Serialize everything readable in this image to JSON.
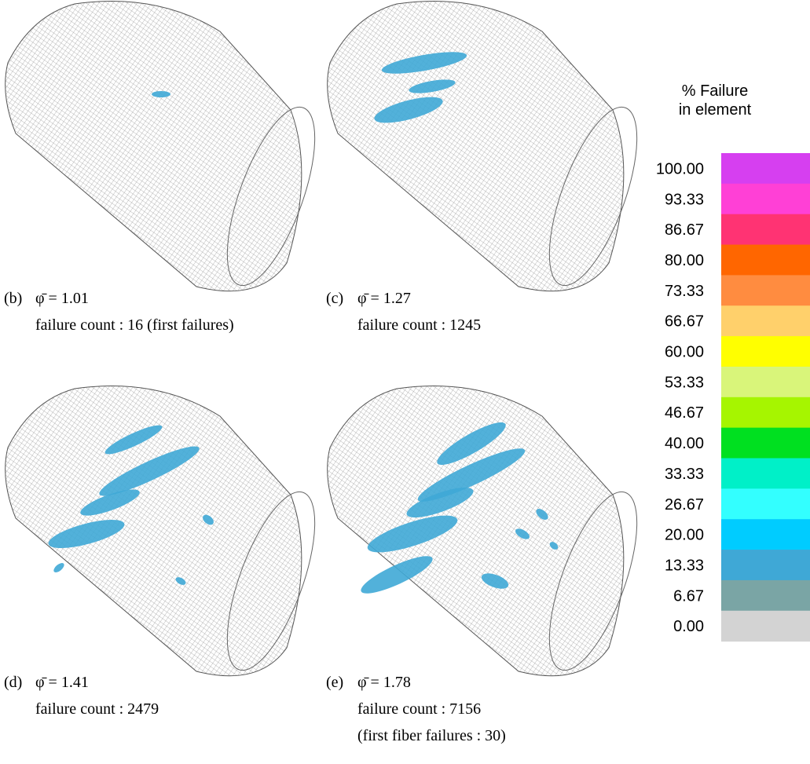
{
  "legend": {
    "title": [
      "% Failure",
      "in element"
    ],
    "entries": [
      {
        "label": "100.00",
        "color": "#d63ff0"
      },
      {
        "label": "93.33",
        "color": "#ff40d6"
      },
      {
        "label": "86.67",
        "color": "#ff3373"
      },
      {
        "label": "80.00",
        "color": "#ff6600"
      },
      {
        "label": "73.33",
        "color": "#ff8c40"
      },
      {
        "label": "66.67",
        "color": "#ffd06b"
      },
      {
        "label": "60.00",
        "color": "#ffff00"
      },
      {
        "label": "53.33",
        "color": "#d9f57a"
      },
      {
        "label": "46.67",
        "color": "#a6f500"
      },
      {
        "label": "40.00",
        "color": "#00e020"
      },
      {
        "label": "33.33",
        "color": "#00f0c8"
      },
      {
        "label": "26.67",
        "color": "#33ffff"
      },
      {
        "label": "20.00",
        "color": "#00ccff"
      },
      {
        "label": "13.33",
        "color": "#3fa8d6"
      },
      {
        "label": "6.67",
        "color": "#7aa5a5"
      },
      {
        "label": "0.00",
        "color": "#d3d3d3"
      }
    ]
  },
  "panels": [
    {
      "tag": "(b)",
      "equation": "φ̄ = 1.01",
      "lines": [
        "failure count : 16 (first failures)"
      ]
    },
    {
      "tag": "(c)",
      "equation": "φ̄ = 1.27",
      "lines": [
        "failure count : 1245"
      ]
    },
    {
      "tag": "(d)",
      "equation": "φ̄ = 1.41",
      "lines": [
        "failure count : 2479"
      ]
    },
    {
      "tag": "(e)",
      "equation": "φ̄ = 1.78",
      "lines": [
        "failure count : 7156",
        "(first fiber failures : 30)"
      ]
    }
  ]
}
